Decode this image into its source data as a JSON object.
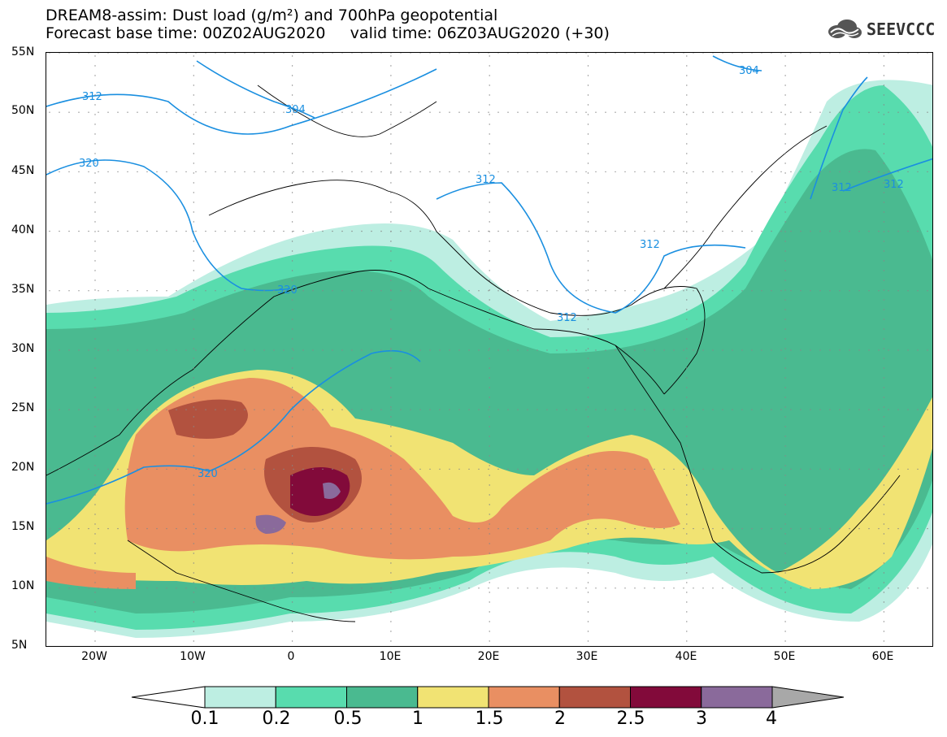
{
  "header": {
    "line1": "DREAM8-assim: Dust load (g/m²) and 700hPa geopotential",
    "line2": "Forecast base time: 00Z02AUG2020     valid time: 06Z03AUG2020 (+30)"
  },
  "logo": {
    "text": "SEEVCCC",
    "icon": "cloud-logo-icon"
  },
  "axes": {
    "lat_labels": [
      "55N",
      "50N",
      "45N",
      "40N",
      "35N",
      "30N",
      "25N",
      "20N",
      "15N",
      "10N",
      "5N"
    ],
    "lon_labels": [
      "20W",
      "10W",
      "0",
      "10E",
      "20E",
      "30E",
      "40E",
      "50E",
      "60E"
    ]
  },
  "contours": {
    "labels": [
      "312",
      "304",
      "320",
      "312",
      "312",
      "320",
      "312",
      "304",
      "312",
      "312",
      "320"
    ]
  },
  "colorbar": {
    "labels": [
      "0.1",
      "0.2",
      "0.5",
      "1",
      "1.5",
      "2",
      "2.5",
      "3",
      "4"
    ],
    "colors": [
      "#bdeee2",
      "#58dcae",
      "#4aba90",
      "#f1e373",
      "#e98f62",
      "#b2523f",
      "#820a3a",
      "#8a6a9b",
      "#a8a8a8"
    ]
  },
  "colors": {
    "contour_line": "#1a8fe0",
    "coastline": "#000000",
    "grid_dots": "#888888"
  }
}
